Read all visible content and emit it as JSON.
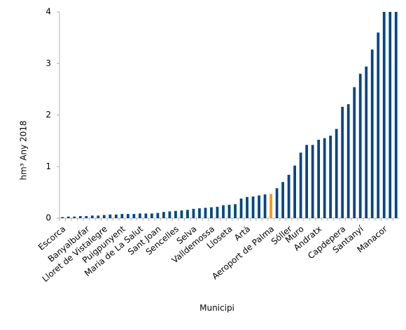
{
  "chart_data": {
    "type": "bar",
    "y_label": "hm³  Any  2018",
    "x_label": "Municipi",
    "categories": [
      "Escorca",
      null,
      null,
      null,
      "Banyalbufar",
      null,
      null,
      "Lloret de Vistalegre",
      null,
      null,
      "Puigpunyent",
      null,
      null,
      "Maria de La Salut",
      null,
      null,
      "Sant Joan",
      null,
      null,
      "Sencelles",
      null,
      null,
      "Selva",
      null,
      null,
      "Valldemossa",
      null,
      null,
      "Lloseta",
      null,
      null,
      "Artà",
      null,
      null,
      null,
      "Aeroport de Palma",
      null,
      null,
      "Sóller",
      null,
      "Muro",
      null,
      null,
      "Andratx",
      null,
      null,
      null,
      "Capdepera",
      null,
      null,
      "Santanyí",
      null,
      null,
      null,
      "Manacor",
      null,
      null
    ],
    "values": [
      0.02,
      0.03,
      0.03,
      0.04,
      0.04,
      0.05,
      0.05,
      0.06,
      0.07,
      0.07,
      0.08,
      0.08,
      0.08,
      0.09,
      0.09,
      0.09,
      0.1,
      0.12,
      0.13,
      0.14,
      0.15,
      0.16,
      0.18,
      0.19,
      0.2,
      0.21,
      0.22,
      0.25,
      0.26,
      0.27,
      0.38,
      0.41,
      0.42,
      0.44,
      0.46,
      0.47,
      0.58,
      0.7,
      0.84,
      1.02,
      1.27,
      1.42,
      1.42,
      1.52,
      1.55,
      1.6,
      1.73,
      2.16,
      2.21,
      2.54,
      2.8,
      2.94,
      3.27,
      3.6,
      4.0,
      4.0,
      4.0
    ],
    "color": "#004586",
    "colors": {
      "35": "#ff950e"
    },
    "ylim": [
      0,
      4
    ],
    "yticks": [
      0,
      1,
      2,
      3,
      4
    ],
    "grid": false
  }
}
